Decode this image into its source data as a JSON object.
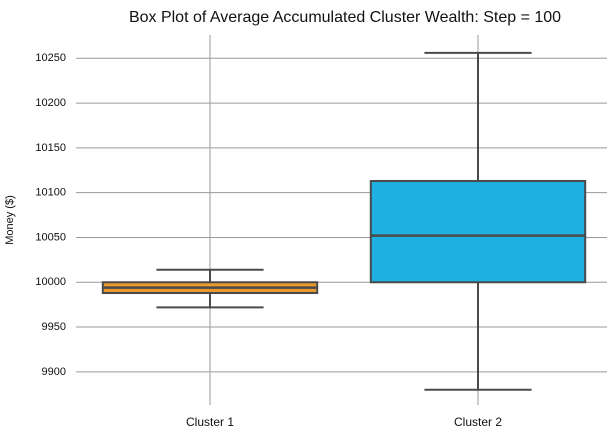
{
  "chart_data": {
    "type": "box",
    "title": "Box Plot of Average Accumulated Cluster Wealth: Step = 100",
    "y_label": "Money ($)",
    "categories": [
      "Cluster 1",
      "Cluster 2"
    ],
    "boxes": [
      {
        "whisker_low": 9972,
        "q1": 9988,
        "median": 9994,
        "q3": 10000,
        "whisker_high": 10014,
        "color": "#e89a2c"
      },
      {
        "whisker_low": 9880,
        "q1": 10000,
        "median": 10052,
        "q3": 10113,
        "whisker_high": 10256,
        "color": "#1fb0e2"
      }
    ],
    "ylim": [
      9863,
      10276
    ],
    "yticks": [
      9900,
      9950,
      10000,
      10050,
      10100,
      10150,
      10200,
      10250
    ],
    "grid": true
  }
}
